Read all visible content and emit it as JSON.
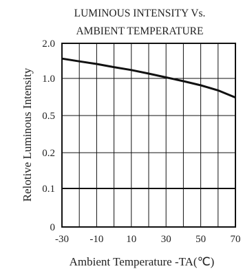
{
  "chart_data": {
    "type": "line",
    "title_lines": [
      "LUMINOUS INTENSITY Vs.",
      "AMBIENT TEMPERATURE"
    ],
    "xlabel": "Ambient Temperature -TA(℃)",
    "ylabel": "Relotive Luminous Intensity",
    "x_ticks": [
      "-30",
      "-10",
      "10",
      "30",
      "50",
      "70"
    ],
    "x_tick_values": [
      -30,
      -10,
      10,
      30,
      50,
      70
    ],
    "xlim": [
      -30,
      70
    ],
    "y_ticks": [
      "0",
      "0.1",
      "0.2",
      "0.5",
      "1.0",
      "2.0"
    ],
    "y_scale": "log (non-linear ticks)",
    "grid": true,
    "series": [
      {
        "x": [
          -30,
          -20,
          -10,
          0,
          10,
          20,
          30,
          40,
          50,
          60,
          70
        ],
        "y": [
          1.48,
          1.4,
          1.33,
          1.25,
          1.18,
          1.1,
          1.02,
          0.95,
          0.88,
          0.8,
          0.7
        ]
      }
    ],
    "reference_line": {
      "y": 0.1
    }
  },
  "colors": {
    "line": "#111111",
    "grid": "#111111",
    "text": "#222222"
  }
}
